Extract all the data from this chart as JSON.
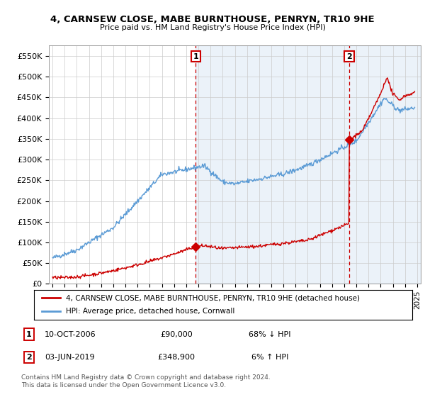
{
  "title1": "4, CARNSEW CLOSE, MABE BURNTHOUSE, PENRYN, TR10 9HE",
  "title2": "Price paid vs. HM Land Registry's House Price Index (HPI)",
  "ylabel_ticks": [
    "£0",
    "£50K",
    "£100K",
    "£150K",
    "£200K",
    "£250K",
    "£300K",
    "£350K",
    "£400K",
    "£450K",
    "£500K",
    "£550K"
  ],
  "ytick_values": [
    0,
    50000,
    100000,
    150000,
    200000,
    250000,
    300000,
    350000,
    400000,
    450000,
    500000,
    550000
  ],
  "xlim_start": 1994.7,
  "xlim_end": 2025.3,
  "ylim_min": 0,
  "ylim_max": 575000,
  "hpi_color": "#5b9bd5",
  "hpi_fill_color": "#ddeeff",
  "price_color": "#cc0000",
  "marker1_date": 2006.78,
  "marker1_price": 90000,
  "marker2_date": 2019.42,
  "marker2_price": 348900,
  "legend_line1": "4, CARNSEW CLOSE, MABE BURNTHOUSE, PENRYN, TR10 9HE (detached house)",
  "legend_line2": "HPI: Average price, detached house, Cornwall",
  "table_row1": [
    "1",
    "10-OCT-2006",
    "£90,000",
    "68% ↓ HPI"
  ],
  "table_row2": [
    "2",
    "03-JUN-2019",
    "£348,900",
    "6% ↑ HPI"
  ],
  "footnote": "Contains HM Land Registry data © Crown copyright and database right 2024.\nThis data is licensed under the Open Government Licence v3.0.",
  "background_color": "#ffffff",
  "grid_color": "#cccccc"
}
